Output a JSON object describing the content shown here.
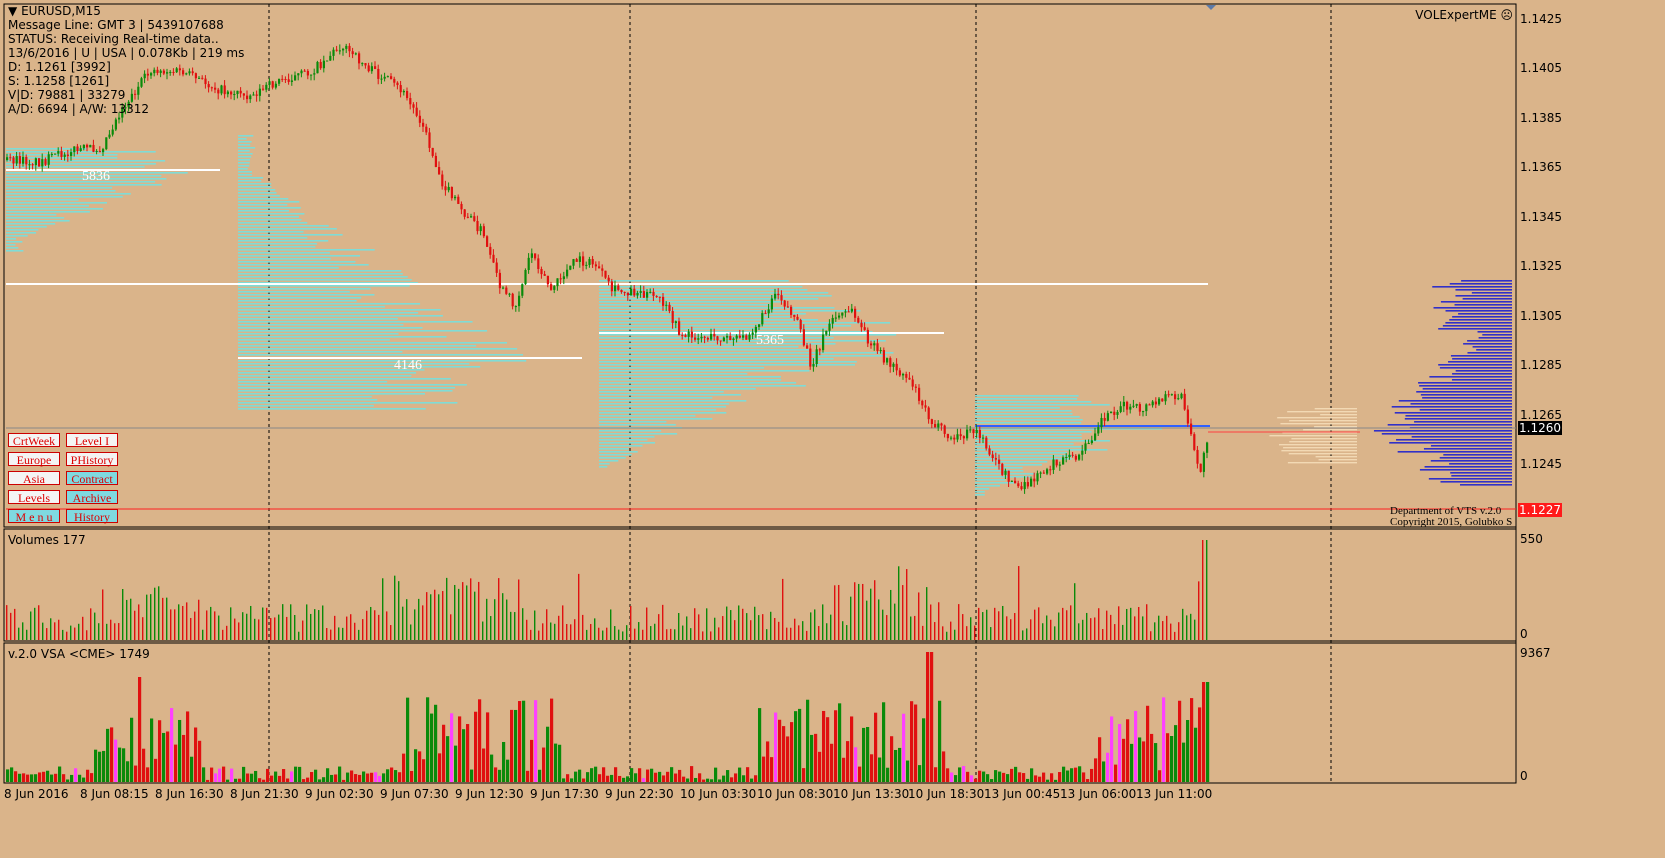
{
  "header": {
    "symbol": "EURUSD,M15",
    "message_line": "Message Line: GMT 3 | 5439107688",
    "status": "STATUS:  Receiving Real-time data..",
    "info": "13/6/2016 | U | USA | 0.078Kb | 219 ms",
    "d_line": "D: 1.1261  [3992]",
    "s_line": "S: 1.1258  [1261]",
    "vd_line": "V|D: 79881 | 33279",
    "ad_line": "A/D: 6694 | A/W: 13312"
  },
  "expert_name": "VOLExpertME",
  "buttons": [
    {
      "label": "CrtWeek",
      "style": "plain"
    },
    {
      "label": "Level I",
      "style": "plain"
    },
    {
      "label": "Europe",
      "style": "plain"
    },
    {
      "label": "PHistory",
      "style": "plain"
    },
    {
      "label": "Asia",
      "style": "plain"
    },
    {
      "label": "Contract",
      "style": "alt"
    },
    {
      "label": "Levels",
      "style": "plain"
    },
    {
      "label": "Archive",
      "style": "alt"
    },
    {
      "label": "M e n u",
      "style": "alt"
    },
    {
      "label": "History",
      "style": "alt"
    }
  ],
  "price_axis": [
    "1.1425",
    "1.1405",
    "1.1385",
    "1.1365",
    "1.1345",
    "1.1325",
    "1.1305",
    "1.1285",
    "1.1265",
    "1.1245"
  ],
  "current_price": "1.1260",
  "red_line_price": "1.1227",
  "volume_labels": [
    "5836",
    "4146",
    "5365"
  ],
  "copyright_1": "Department of VTS  v.2.0",
  "copyright_2": "Copyright 2015, Golubko S",
  "volumes_pane": {
    "title": "Volumes 177",
    "max": "550",
    "min": "0"
  },
  "vsa_pane": {
    "title": "v.2.0 VSA <CME> 1749",
    "max": "9367",
    "min": "0"
  },
  "dates": [
    "8 Jun 2016",
    "8 Jun 08:15",
    "8 Jun 16:30",
    "8 Jun 21:30",
    "9 Jun 02:30",
    "9 Jun 07:30",
    "9 Jun 12:30",
    "9 Jun 17:30",
    "9 Jun 22:30",
    "10 Jun 03:30",
    "10 Jun 08:30",
    "10 Jun 13:30",
    "10 Jun 18:30",
    "13 Jun 00:45",
    "13 Jun 06:00",
    "13 Jun 11:00"
  ],
  "colors": {
    "background": "#dab48a",
    "bull": "#0a8a0a",
    "bear": "#e01010",
    "profile": "#7fdcd6",
    "profile_right": "#3030c8",
    "accent": "#ff2020"
  }
}
